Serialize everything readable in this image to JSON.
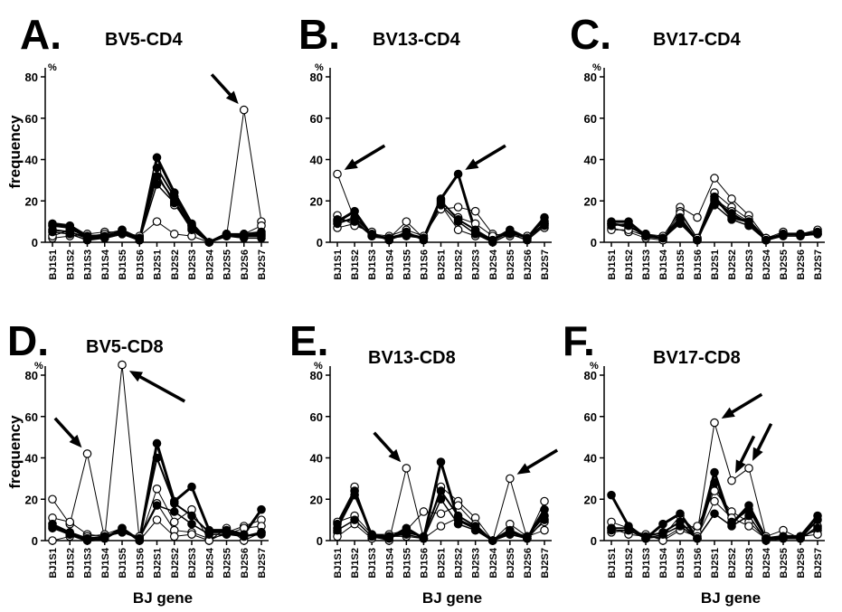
{
  "ylabel": "frequency",
  "xlabel": "BJ gene",
  "unit": "%",
  "colors": {
    "ink": "#000000",
    "hollow": "#ffffff"
  },
  "chart_data": [
    {
      "letter": "A.",
      "title": "BV5-CD4",
      "type": "line",
      "ylim": [
        0,
        80
      ],
      "yticks": [
        0,
        20,
        40,
        60,
        80
      ],
      "categories": [
        "BJ1S1",
        "BJ1S2",
        "BJ1S3",
        "BJ1S4",
        "BJ1S5",
        "BJ1S6",
        "BJ2S1",
        "BJ2S2",
        "BJ2S3",
        "BJ2S4",
        "BJ2S5",
        "BJ2S6",
        "BJ2S7"
      ],
      "series": [
        {
          "style": "filled",
          "width": 3,
          "values": [
            9,
            8,
            3,
            3,
            5,
            1,
            41,
            24,
            9,
            0,
            4,
            3,
            4
          ]
        },
        {
          "style": "filled",
          "width": 2,
          "values": [
            8,
            7,
            2,
            2,
            4,
            1,
            36,
            22,
            8,
            0,
            4,
            4,
            5
          ]
        },
        {
          "style": "filled",
          "width": 2,
          "values": [
            6,
            5,
            2,
            2,
            6,
            2,
            32,
            20,
            7,
            0,
            3,
            3,
            3
          ]
        },
        {
          "style": "filled",
          "width": 1.5,
          "values": [
            5,
            4,
            1,
            2,
            4,
            1,
            28,
            19,
            6,
            0,
            3,
            2,
            2
          ]
        },
        {
          "style": "open",
          "width": 1,
          "values": [
            2,
            3,
            4,
            5,
            5,
            3,
            10,
            4,
            3,
            0,
            3,
            64,
            10
          ]
        },
        {
          "style": "open",
          "width": 1,
          "values": [
            3,
            6,
            3,
            4,
            6,
            2,
            34,
            18,
            8,
            0,
            4,
            4,
            8
          ]
        }
      ],
      "arrows": [
        {
          "tx": 11,
          "ty": 64,
          "dir": "left-up"
        }
      ]
    },
    {
      "letter": "B.",
      "title": "BV13-CD4",
      "type": "line",
      "ylim": [
        0,
        80
      ],
      "yticks": [
        0,
        20,
        40,
        60,
        80
      ],
      "categories": [
        "BJ1S1",
        "BJ1S2",
        "BJ1S3",
        "BJ1S4",
        "BJ1S5",
        "BJ1S6",
        "BJ2S1",
        "BJ2S2",
        "BJ2S3",
        "BJ2S4",
        "BJ2S5",
        "BJ2S6",
        "BJ2S7"
      ],
      "series": [
        {
          "style": "filled",
          "width": 3,
          "values": [
            10,
            15,
            3,
            2,
            4,
            2,
            21,
            33,
            5,
            1,
            6,
            2,
            12
          ]
        },
        {
          "style": "filled",
          "width": 2,
          "values": [
            9,
            12,
            4,
            1,
            5,
            1,
            20,
            11,
            6,
            1,
            5,
            2,
            9
          ]
        },
        {
          "style": "filled",
          "width": 1.5,
          "values": [
            11,
            10,
            3,
            2,
            3,
            2,
            18,
            10,
            4,
            0,
            4,
            1,
            8
          ]
        },
        {
          "style": "open",
          "width": 1,
          "values": [
            33,
            11,
            3,
            2,
            10,
            2,
            18,
            6,
            3,
            2,
            4,
            3,
            7
          ]
        },
        {
          "style": "open",
          "width": 1,
          "values": [
            7,
            9,
            4,
            3,
            6,
            3,
            16,
            17,
            15,
            4,
            3,
            3,
            10
          ]
        },
        {
          "style": "open",
          "width": 1,
          "values": [
            13,
            8,
            5,
            1,
            4,
            2,
            19,
            12,
            9,
            3,
            5,
            2,
            9
          ]
        }
      ],
      "arrows": [
        {
          "tx": 0,
          "ty": 33,
          "dir": "right-up"
        },
        {
          "tx": 7,
          "ty": 33,
          "dir": "right-up"
        }
      ]
    },
    {
      "letter": "C.",
      "title": "BV17-CD4",
      "type": "line",
      "ylim": [
        0,
        80
      ],
      "yticks": [
        0,
        20,
        40,
        60,
        80
      ],
      "categories": [
        "BJ1S1",
        "BJ1S2",
        "BJ1S3",
        "BJ1S4",
        "BJ1S5",
        "BJ1S6",
        "BJ2S1",
        "BJ2S2",
        "BJ2S3",
        "BJ2S4",
        "BJ2S5",
        "BJ2S6",
        "BJ2S7"
      ],
      "series": [
        {
          "style": "filled",
          "width": 3,
          "values": [
            10,
            10,
            3,
            2,
            10,
            1,
            22,
            12,
            10,
            1,
            4,
            4,
            4
          ]
        },
        {
          "style": "filled",
          "width": 2,
          "values": [
            9,
            8,
            3,
            2,
            12,
            1,
            20,
            14,
            9,
            1,
            4,
            4,
            5
          ]
        },
        {
          "style": "filled",
          "width": 1.5,
          "values": [
            8,
            9,
            4,
            2,
            9,
            1,
            18,
            11,
            8,
            1,
            3,
            3,
            4
          ]
        },
        {
          "style": "open",
          "width": 1,
          "values": [
            7,
            5,
            2,
            1,
            17,
            12,
            31,
            21,
            13,
            2,
            4,
            4,
            5
          ]
        },
        {
          "style": "open",
          "width": 1,
          "values": [
            9,
            7,
            4,
            3,
            15,
            2,
            24,
            17,
            11,
            2,
            5,
            3,
            4
          ]
        },
        {
          "style": "open",
          "width": 1,
          "values": [
            6,
            6,
            3,
            2,
            14,
            2,
            21,
            15,
            10,
            2,
            4,
            4,
            6
          ]
        }
      ],
      "arrows": []
    },
    {
      "letter": "D.",
      "title": "BV5-CD8",
      "type": "line",
      "ylim": [
        0,
        80
      ],
      "yticks": [
        0,
        20,
        40,
        60,
        80
      ],
      "categories": [
        "BJ1S1",
        "BJ1S2",
        "BJ1S3",
        "BJ1S4",
        "BJ1S5",
        "BJ1S6",
        "BJ2S1",
        "BJ2S2",
        "BJ2S3",
        "BJ2S4",
        "BJ2S5",
        "BJ2S6",
        "BJ2S7"
      ],
      "series": [
        {
          "style": "filled",
          "width": 3,
          "values": [
            7,
            3,
            0,
            1,
            6,
            0,
            47,
            19,
            26,
            5,
            5,
            3,
            15
          ]
        },
        {
          "style": "filled",
          "width": 2,
          "values": [
            8,
            4,
            1,
            2,
            5,
            1,
            40,
            18,
            12,
            4,
            4,
            2,
            4
          ]
        },
        {
          "style": "filled",
          "width": 1.5,
          "values": [
            6,
            3,
            1,
            2,
            4,
            1,
            17,
            14,
            8,
            3,
            3,
            2,
            3
          ]
        },
        {
          "style": "open",
          "width": 1,
          "values": [
            20,
            8,
            42,
            1,
            85,
            0,
            25,
            9,
            15,
            0,
            4,
            7,
            10
          ]
        },
        {
          "style": "open",
          "width": 1,
          "values": [
            11,
            9,
            3,
            2,
            4,
            2,
            18,
            5,
            4,
            1,
            3,
            6,
            7
          ]
        },
        {
          "style": "open",
          "width": 1,
          "values": [
            0,
            2,
            2,
            3,
            6,
            0,
            10,
            2,
            3,
            0,
            6,
            0,
            4
          ]
        }
      ],
      "arrows": [
        {
          "tx": 2,
          "ty": 42,
          "dir": "left-up"
        },
        {
          "tx": 4,
          "ty": 84,
          "dir": "right-down"
        }
      ]
    },
    {
      "letter": "E.",
      "title": "BV13-CD8",
      "type": "line",
      "ylim": [
        0,
        80
      ],
      "yticks": [
        0,
        20,
        40,
        60,
        80
      ],
      "categories": [
        "BJ1S1",
        "BJ1S2",
        "BJ1S3",
        "BJ1S4",
        "BJ1S5",
        "BJ1S6",
        "BJ2S1",
        "BJ2S2",
        "BJ2S3",
        "BJ2S4",
        "BJ2S5",
        "BJ2S6",
        "BJ2S7"
      ],
      "series": [
        {
          "style": "filled",
          "width": 3,
          "values": [
            8,
            24,
            2,
            1,
            6,
            1,
            38,
            10,
            6,
            0,
            5,
            1,
            15
          ]
        },
        {
          "style": "filled",
          "width": 2,
          "values": [
            6,
            22,
            3,
            2,
            4,
            2,
            24,
            12,
            7,
            0,
            4,
            2,
            12
          ]
        },
        {
          "style": "filled",
          "width": 1.5,
          "values": [
            5,
            10,
            2,
            2,
            3,
            1,
            20,
            8,
            5,
            0,
            3,
            1,
            10
          ]
        },
        {
          "style": "open",
          "width": 1,
          "values": [
            4,
            26,
            2,
            0,
            35,
            1,
            26,
            19,
            11,
            0,
            30,
            1,
            19
          ]
        },
        {
          "style": "open",
          "width": 1,
          "values": [
            9,
            12,
            3,
            3,
            5,
            14,
            13,
            17,
            8,
            0,
            8,
            2,
            9
          ]
        },
        {
          "style": "open",
          "width": 1,
          "values": [
            2,
            8,
            1,
            2,
            2,
            1,
            7,
            11,
            5,
            0,
            3,
            2,
            5
          ]
        }
      ],
      "arrows": [
        {
          "tx": 4,
          "ty": 35,
          "dir": "left-up"
        },
        {
          "tx": 10,
          "ty": 30,
          "dir": "right-up"
        }
      ]
    },
    {
      "letter": "F.",
      "title": "BV17-CD8",
      "type": "line",
      "ylim": [
        0,
        80
      ],
      "yticks": [
        0,
        20,
        40,
        60,
        80
      ],
      "categories": [
        "BJ1S1",
        "BJ1S2",
        "BJ1S3",
        "BJ1S4",
        "BJ1S5",
        "BJ1S6",
        "BJ2S1",
        "BJ2S2",
        "BJ2S3",
        "BJ2S4",
        "BJ2S5",
        "BJ2S6",
        "BJ2S7"
      ],
      "series": [
        {
          "style": "filled",
          "width": 3,
          "values": [
            22,
            7,
            1,
            8,
            13,
            1,
            33,
            8,
            17,
            1,
            2,
            2,
            12
          ]
        },
        {
          "style": "filled",
          "width": 2,
          "values": [
            6,
            6,
            2,
            4,
            9,
            1,
            28,
            9,
            15,
            1,
            2,
            1,
            10
          ]
        },
        {
          "style": "filled",
          "width": 1.5,
          "values": [
            5,
            5,
            1,
            3,
            7,
            1,
            13,
            7,
            12,
            0,
            1,
            1,
            6
          ]
        },
        {
          "style": "open",
          "width": 1,
          "values": [
            9,
            6,
            1,
            2,
            12,
            4,
            57,
            29,
            35,
            2,
            5,
            1,
            7
          ]
        },
        {
          "style": "open",
          "width": 1,
          "values": [
            6,
            3,
            2,
            1,
            6,
            7,
            24,
            14,
            9,
            1,
            2,
            2,
            5
          ]
        },
        {
          "style": "open",
          "width": 1,
          "values": [
            4,
            5,
            3,
            0,
            5,
            2,
            19,
            11,
            7,
            1,
            1,
            2,
            3
          ]
        }
      ],
      "arrows": [
        {
          "tx": 6,
          "ty": 57,
          "dir": "right-up"
        },
        {
          "tx": 7,
          "ty": 29,
          "dir": "right-up-steep"
        },
        {
          "tx": 8,
          "ty": 35,
          "dir": "right-up-steep"
        }
      ]
    }
  ]
}
